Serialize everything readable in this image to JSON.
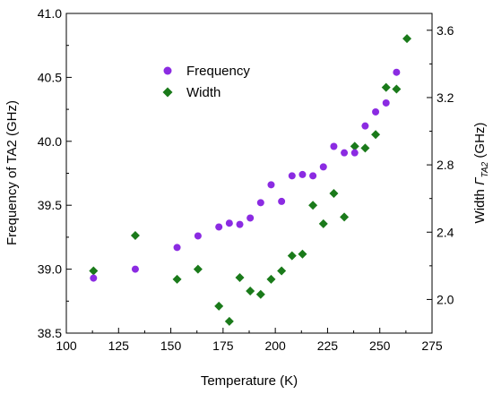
{
  "chart_data": {
    "type": "scatter",
    "xlabel": "Temperature (K)",
    "ylabel_left": "Frequency of TA2 (GHz)",
    "ylabel_right_prefix": "Width ",
    "ylabel_right_symbol": "Γ",
    "ylabel_right_subscript": "TA2",
    "ylabel_right_suffix": " (GHz)",
    "xlim": [
      100,
      275
    ],
    "ylim_left": [
      38.5,
      41.0
    ],
    "ylim_right": [
      1.8,
      3.7
    ],
    "x_ticks": [
      100,
      125,
      150,
      175,
      200,
      225,
      250,
      275
    ],
    "y_left_ticks": [
      38.5,
      39.0,
      39.5,
      40.0,
      40.5,
      41.0
    ],
    "y_right_ticks": [
      2.0,
      2.4,
      2.8,
      3.2,
      3.6
    ],
    "legend_position": "upper-left-center",
    "grid": false,
    "series": [
      {
        "name": "Frequency",
        "axis": "left",
        "color": "#8b2be2",
        "marker": "circle",
        "x": [
          113,
          133,
          153,
          163,
          173,
          178,
          183,
          188,
          193,
          198,
          203,
          208,
          213,
          218,
          223,
          228,
          233,
          238,
          243,
          248,
          253,
          258
        ],
        "y": [
          38.93,
          39.0,
          39.17,
          39.26,
          39.33,
          39.36,
          39.35,
          39.4,
          39.52,
          39.66,
          39.53,
          39.73,
          39.74,
          39.73,
          39.8,
          39.96,
          39.91,
          39.91,
          40.12,
          40.23,
          40.3,
          40.54
        ]
      },
      {
        "name": "Width",
        "axis": "right",
        "color": "#1a7a1a",
        "marker": "diamond",
        "x": [
          113,
          133,
          153,
          163,
          173,
          178,
          183,
          188,
          193,
          198,
          203,
          208,
          213,
          218,
          223,
          228,
          233,
          238,
          243,
          248,
          253,
          258,
          263
        ],
        "y": [
          2.17,
          2.38,
          2.12,
          2.18,
          1.96,
          1.87,
          2.13,
          2.05,
          2.03,
          2.12,
          2.17,
          2.26,
          2.27,
          2.56,
          2.45,
          2.63,
          2.49,
          2.91,
          2.9,
          2.98,
          3.26,
          3.25,
          3.55
        ]
      }
    ]
  }
}
